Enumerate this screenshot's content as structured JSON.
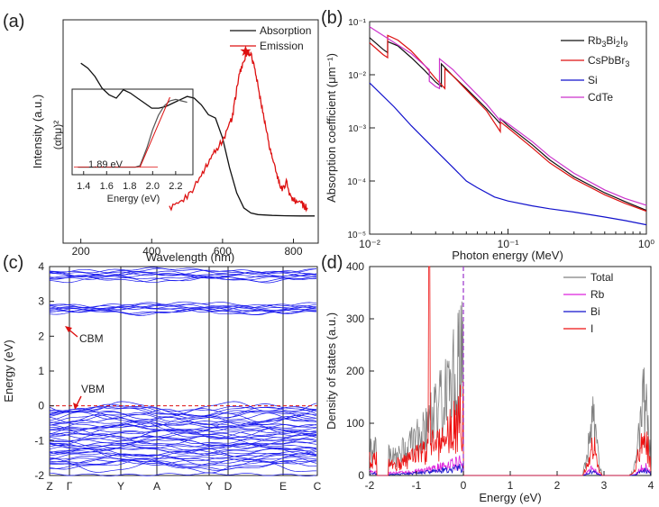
{
  "figure": {
    "panel_labels": [
      "(a)",
      "(b)",
      "(c)",
      "(d)"
    ]
  },
  "chart_data": [
    {
      "type": "line",
      "panel": "(a)",
      "xlabel": "Wavelength (nm)",
      "ylabel": "Intensity (a.u.)",
      "xlim": [
        150,
        870
      ],
      "xticks": [
        200,
        400,
        600,
        800
      ],
      "yticks_shown": false,
      "legend": [
        "Absorption",
        "Emission"
      ],
      "series": [
        {
          "name": "Absorption",
          "color": "#111111",
          "x": [
            200,
            220,
            240,
            260,
            280,
            300,
            320,
            340,
            360,
            380,
            400,
            420,
            440,
            460,
            480,
            500,
            520,
            540,
            560,
            580,
            600,
            620,
            640,
            660,
            680,
            700,
            740,
            780,
            820,
            860
          ],
          "y": [
            0.93,
            0.9,
            0.85,
            0.78,
            0.74,
            0.72,
            0.77,
            0.75,
            0.72,
            0.69,
            0.66,
            0.66,
            0.67,
            0.69,
            0.71,
            0.73,
            0.72,
            0.68,
            0.62,
            0.6,
            0.48,
            0.3,
            0.15,
            0.06,
            0.03,
            0.02,
            0.015,
            0.013,
            0.012,
            0.012
          ]
        },
        {
          "name": "Emission",
          "color": "#dd1111",
          "x": [
            450,
            480,
            510,
            540,
            560,
            580,
            600,
            620,
            630,
            640,
            650,
            660,
            670,
            680,
            690,
            700,
            710,
            720,
            730,
            740,
            750,
            760,
            770,
            780,
            790,
            800,
            810,
            820,
            830,
            840
          ],
          "y": [
            0.06,
            0.09,
            0.15,
            0.26,
            0.34,
            0.41,
            0.46,
            0.56,
            0.63,
            0.78,
            0.88,
            0.95,
            1.0,
            0.98,
            0.9,
            0.8,
            0.68,
            0.57,
            0.46,
            0.36,
            0.28,
            0.21,
            0.17,
            0.22,
            0.14,
            0.1,
            0.11,
            0.09,
            0.07,
            0.06
          ]
        }
      ],
      "inset": {
        "xlabel": "Energy (eV)",
        "ylabel": "(αhμ)²",
        "xticks": [
          1.4,
          1.6,
          1.8,
          2.0,
          2.2
        ],
        "xlim": [
          1.3,
          2.35
        ],
        "annotation": "1.89 eV",
        "curve": {
          "x": [
            1.35,
            1.6,
            1.8,
            1.85,
            1.89,
            1.95,
            2.0,
            2.05,
            2.1,
            2.15,
            2.2,
            2.25,
            2.3
          ],
          "y": [
            0.03,
            0.03,
            0.03,
            0.03,
            0.05,
            0.3,
            0.55,
            0.75,
            0.88,
            0.95,
            0.97,
            0.95,
            0.93
          ]
        },
        "fit_line": {
          "x": [
            1.89,
            2.15
          ],
          "y": [
            0.03,
            1.0
          ]
        }
      }
    },
    {
      "type": "line",
      "panel": "(b)",
      "xlabel": "Photon energy (MeV)",
      "ylabel": "Absorption coefficient (μm⁻¹)",
      "xscale": "log",
      "yscale": "log",
      "xlim": [
        0.01,
        1
      ],
      "ylim": [
        1e-05,
        0.1
      ],
      "xtick_labels": [
        "10⁻²",
        "10⁻¹",
        "10⁰"
      ],
      "ytick_labels": [
        "10⁻⁵",
        "10⁻⁴",
        "10⁻³",
        "10⁻²",
        "10⁻¹"
      ],
      "legend": [
        "Rb3Bi2I9",
        "CsPbBr3",
        "Si",
        "CdTe"
      ],
      "series": [
        {
          "name": "Rb3Bi2I9",
          "color": "#111111",
          "x": [
            0.01,
            0.0125,
            0.0135,
            0.0135,
            0.016,
            0.02,
            0.025,
            0.03,
            0.033,
            0.033,
            0.04,
            0.05,
            0.07,
            0.088,
            0.088,
            0.1,
            0.15,
            0.2,
            0.3,
            0.5,
            0.7,
            1.0
          ],
          "y": [
            0.05,
            0.03,
            0.026,
            0.042,
            0.035,
            0.021,
            0.012,
            0.0073,
            0.006,
            0.016,
            0.0095,
            0.0055,
            0.0023,
            0.0012,
            0.0015,
            0.0011,
            0.00048,
            0.00025,
            0.00012,
            6e-05,
            4.1e-05,
            2.8e-05
          ]
        },
        {
          "name": "CsPbBr3",
          "color": "#dd1111",
          "x": [
            0.01,
            0.0125,
            0.0135,
            0.0135,
            0.016,
            0.02,
            0.025,
            0.03,
            0.035,
            0.035,
            0.04,
            0.05,
            0.07,
            0.088,
            0.088,
            0.1,
            0.15,
            0.2,
            0.3,
            0.5,
            0.7,
            1.0
          ],
          "y": [
            0.04,
            0.024,
            0.021,
            0.055,
            0.045,
            0.028,
            0.015,
            0.0085,
            0.0055,
            0.013,
            0.0095,
            0.0052,
            0.0021,
            0.00085,
            0.0013,
            0.001,
            0.00042,
            0.00022,
            0.00011,
            5.5e-05,
            3.8e-05,
            2.7e-05
          ]
        },
        {
          "name": "Si",
          "color": "#1111cc",
          "x": [
            0.01,
            0.015,
            0.02,
            0.03,
            0.04,
            0.05,
            0.06,
            0.08,
            0.1,
            0.15,
            0.2,
            0.3,
            0.5,
            0.7,
            1.0
          ],
          "y": [
            0.007,
            0.0025,
            0.0011,
            0.00038,
            0.00018,
            0.0001,
            7.5e-05,
            5e-05,
            4.2e-05,
            3.4e-05,
            3e-05,
            2.6e-05,
            2.1e-05,
            1.8e-05,
            1.5e-05
          ]
        },
        {
          "name": "CdTe",
          "color": "#cc33cc",
          "x": [
            0.01,
            0.02,
            0.027,
            0.027,
            0.03,
            0.032,
            0.032,
            0.04,
            0.05,
            0.07,
            0.088,
            0.088,
            0.1,
            0.15,
            0.2,
            0.3,
            0.5,
            0.7,
            1.0
          ],
          "y": [
            0.08,
            0.025,
            0.0125,
            0.0075,
            0.006,
            0.0055,
            0.02,
            0.0125,
            0.0068,
            0.0028,
            0.00135,
            0.0015,
            0.0012,
            0.00055,
            0.00029,
            0.00014,
            6.8e-05,
            4.7e-05,
            3.5e-05
          ]
        }
      ]
    },
    {
      "type": "line",
      "panel": "(c)",
      "ylabel": "Energy (eV)",
      "ylim": [
        -2,
        4
      ],
      "yticks": [
        -2,
        -1,
        0,
        1,
        2,
        3,
        4
      ],
      "kpoints": [
        "Z",
        "Γ",
        "Y",
        "A",
        "Y",
        "D",
        "E",
        "C"
      ],
      "annotations": [
        "CBM",
        "VBM"
      ],
      "band_color": "#1a1aee"
    },
    {
      "type": "area",
      "panel": "(d)",
      "xlabel": "Energy (eV)",
      "ylabel": "Density of states (a.u.)",
      "xlim": [
        -2,
        4
      ],
      "ylim": [
        0,
        400
      ],
      "xticks": [
        -2,
        -1,
        0,
        1,
        2,
        3,
        4
      ],
      "yticks": [
        0,
        100,
        200,
        300,
        400
      ],
      "legend": [
        "Total",
        "Rb",
        "Bi",
        "I"
      ],
      "series": [
        {
          "name": "Total",
          "color": "#808080"
        },
        {
          "name": "Rb",
          "color": "#dd22dd"
        },
        {
          "name": "Bi",
          "color": "#1111cc"
        },
        {
          "name": "I",
          "color": "#ee1111"
        }
      ]
    }
  ]
}
